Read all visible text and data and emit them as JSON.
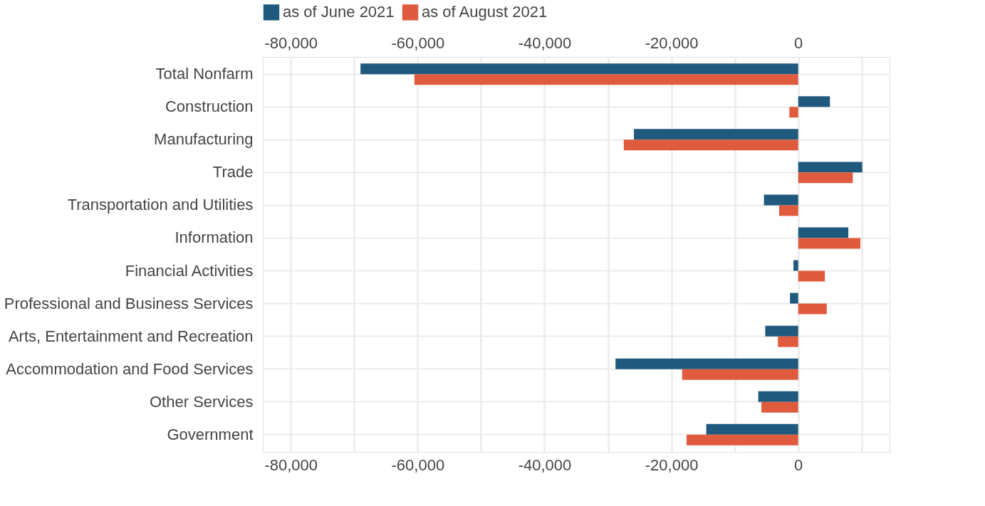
{
  "chart_data": {
    "type": "bar",
    "orientation": "horizontal",
    "categories": [
      "Total Nonfarm",
      "Construction",
      "Manufacturing",
      "Trade",
      "Transportation and Utilities",
      "Information",
      "Financial Activities",
      "Professional and Business Services",
      "Arts, Entertainment and Recreation",
      "Accommodation and Food Services",
      "Other Services",
      "Government"
    ],
    "series": [
      {
        "name": "as of June 2021",
        "color": "#1f5a7e",
        "values": [
          -69000,
          5000,
          -25900,
          10100,
          -5400,
          7900,
          -750,
          -1300,
          -5200,
          -28800,
          -6300,
          -14500
        ]
      },
      {
        "name": "as of August 2021",
        "color": "#e05a3d",
        "values": [
          -60500,
          -1400,
          -27500,
          8600,
          -3000,
          9800,
          4200,
          4500,
          -3200,
          -18300,
          -5800,
          -17600
        ]
      }
    ],
    "xlim": [
      -84400,
      14400
    ],
    "xticks": [
      {
        "value": -80000,
        "label": "-80,000"
      },
      {
        "value": -70000,
        "label": null
      },
      {
        "value": -60000,
        "label": "-60,000"
      },
      {
        "value": -50000,
        "label": null
      },
      {
        "value": -40000,
        "label": "-40,000"
      },
      {
        "value": -30000,
        "label": null
      },
      {
        "value": -20000,
        "label": "-20,000"
      },
      {
        "value": -10000,
        "label": null
      },
      {
        "value": 0,
        "label": "0"
      },
      {
        "value": 10000,
        "label": null
      }
    ],
    "x2lim": [
      -84400,
      14400
    ],
    "x2ticks": [
      {
        "value": -80000,
        "label": "-80,000"
      },
      {
        "value": -70000,
        "label": null
      },
      {
        "value": -60000,
        "label": "-60,000"
      },
      {
        "value": -50000,
        "label": null
      },
      {
        "value": -40000,
        "label": "-40,000"
      },
      {
        "value": -30000,
        "label": null
      },
      {
        "value": -20000,
        "label": "-20,000"
      },
      {
        "value": -10000,
        "label": null
      },
      {
        "value": 0,
        "label": "0"
      },
      {
        "value": 10000,
        "label": null
      }
    ],
    "grid": true,
    "legend": "top"
  }
}
